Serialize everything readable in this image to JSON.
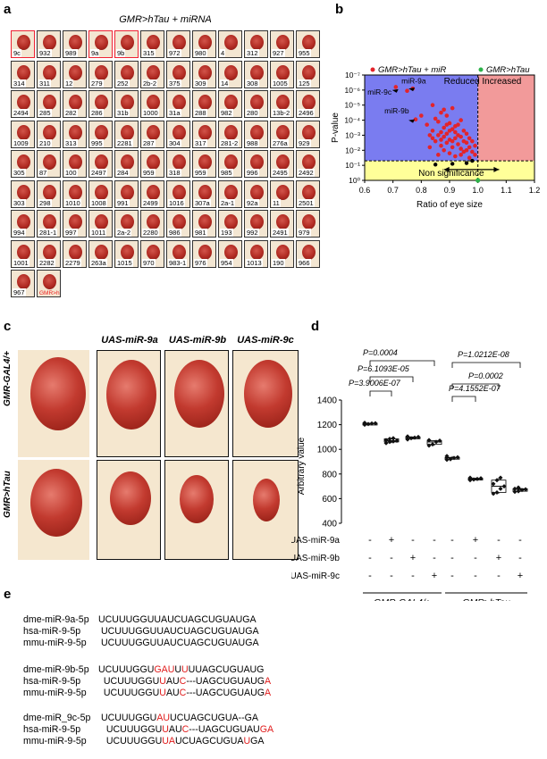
{
  "panel_a": {
    "letter": "a",
    "title": "GMR>hTau + miRNA",
    "tiles": [
      {
        "label": "9c",
        "hl": true
      },
      {
        "label": "932"
      },
      {
        "label": "989"
      },
      {
        "label": "9a",
        "hl": true
      },
      {
        "label": "9b",
        "hl": true
      },
      {
        "label": "315"
      },
      {
        "label": "972"
      },
      {
        "label": "980"
      },
      {
        "label": "4"
      },
      {
        "label": "312"
      },
      {
        "label": "927"
      },
      {
        "label": "955"
      },
      {
        "label": "314"
      },
      {
        "label": "311"
      },
      {
        "label": "12"
      },
      {
        "label": "279"
      },
      {
        "label": "252"
      },
      {
        "label": "2b-2"
      },
      {
        "label": "375"
      },
      {
        "label": "309"
      },
      {
        "label": "14"
      },
      {
        "label": "308"
      },
      {
        "label": "1005"
      },
      {
        "label": "125"
      },
      {
        "label": "2494"
      },
      {
        "label": "285"
      },
      {
        "label": "282"
      },
      {
        "label": "286"
      },
      {
        "label": "31b"
      },
      {
        "label": "1000"
      },
      {
        "label": "31a"
      },
      {
        "label": "288"
      },
      {
        "label": "982"
      },
      {
        "label": "280"
      },
      {
        "label": "13b-2"
      },
      {
        "label": "2496"
      },
      {
        "label": "1009"
      },
      {
        "label": "210"
      },
      {
        "label": "313"
      },
      {
        "label": "995"
      },
      {
        "label": "2281"
      },
      {
        "label": "287"
      },
      {
        "label": "304"
      },
      {
        "label": "317"
      },
      {
        "label": "281-2"
      },
      {
        "label": "988"
      },
      {
        "label": "276a"
      },
      {
        "label": "929"
      },
      {
        "label": "305"
      },
      {
        "label": "87"
      },
      {
        "label": "100"
      },
      {
        "label": "2497"
      },
      {
        "label": "284"
      },
      {
        "label": "959"
      },
      {
        "label": "318"
      },
      {
        "label": "959"
      },
      {
        "label": "985"
      },
      {
        "label": "996"
      },
      {
        "label": "2495"
      },
      {
        "label": "2492"
      },
      {
        "label": "303"
      },
      {
        "label": "298"
      },
      {
        "label": "1010"
      },
      {
        "label": "1008"
      },
      {
        "label": "991"
      },
      {
        "label": "2499"
      },
      {
        "label": "1016"
      },
      {
        "label": "307a"
      },
      {
        "label": "2a-1"
      },
      {
        "label": "92a"
      },
      {
        "label": "11"
      },
      {
        "label": "2501"
      },
      {
        "label": "994"
      },
      {
        "label": "281-1"
      },
      {
        "label": "997"
      },
      {
        "label": "1011"
      },
      {
        "label": "2a-2"
      },
      {
        "label": "2280"
      },
      {
        "label": "986"
      },
      {
        "label": "981"
      },
      {
        "label": "193"
      },
      {
        "label": "992"
      },
      {
        "label": "2491"
      },
      {
        "label": "979"
      },
      {
        "label": "1001"
      },
      {
        "label": "2282"
      },
      {
        "label": "2279"
      },
      {
        "label": "263a"
      },
      {
        "label": "1015"
      },
      {
        "label": "970"
      },
      {
        "label": "983-1"
      },
      {
        "label": "976"
      },
      {
        "label": "954"
      },
      {
        "label": "1013"
      },
      {
        "label": "190"
      },
      {
        "label": "966"
      },
      {
        "label": "967"
      },
      {
        "label": "GMR>hTau",
        "ref": true
      }
    ]
  },
  "panel_b": {
    "letter": "b",
    "legend_left": "GMR>hTau + miR",
    "legend_right": "GMR>hTau",
    "region_reduced": "Reduced",
    "region_increased": "Increased",
    "region_ns": "Non significance",
    "ylabel": "P-value",
    "xlabel": "Ratio of eye size",
    "ann_9a": "miR-9a",
    "ann_9c": "miR-9c",
    "ann_9b": "miR-9b",
    "colors": {
      "reduced": "#7a7cf0",
      "increased": "#f29a9a",
      "ns": "#ffff99",
      "dot": "#e3242b",
      "ref": "#2db34a"
    }
  },
  "chart_data": {
    "type": "scatter",
    "xlabel": "Ratio of eye size",
    "ylabel": "P-value",
    "xlim": [
      0.6,
      1.2
    ],
    "ylim_log10": [
      0,
      -7
    ],
    "x_ticks": [
      "0.6",
      "0.7",
      "0.8",
      "0.9",
      "1.0",
      "1.1",
      "1.2"
    ],
    "y_ticks": [
      "10⁰",
      "10⁻¹",
      "10⁻²",
      "10⁻³",
      "10⁻⁴",
      "10⁻⁵",
      "10⁻⁶",
      "10⁻⁷"
    ],
    "significance_line_log10": -1.3,
    "series": [
      {
        "name": "GMR>hTau + miR",
        "points": [
          [
            0.71,
            -6.2
          ],
          [
            0.75,
            -5.95
          ],
          [
            0.77,
            -6.1
          ],
          [
            0.78,
            -4.05
          ],
          [
            0.8,
            -4.3
          ],
          [
            0.82,
            -3.7
          ],
          [
            0.83,
            -3.0
          ],
          [
            0.83,
            -2.2
          ],
          [
            0.84,
            -5.0
          ],
          [
            0.84,
            -3.3
          ],
          [
            0.85,
            -4.1
          ],
          [
            0.85,
            -2.6
          ],
          [
            0.86,
            -3.9
          ],
          [
            0.86,
            -1.7
          ],
          [
            0.87,
            -4.5
          ],
          [
            0.87,
            -3.2
          ],
          [
            0.87,
            -2.3
          ],
          [
            0.88,
            -3.5
          ],
          [
            0.88,
            -2.9
          ],
          [
            0.88,
            -2.0
          ],
          [
            0.89,
            -4.3
          ],
          [
            0.89,
            -3.1
          ],
          [
            0.89,
            -2.5
          ],
          [
            0.9,
            -3.8
          ],
          [
            0.9,
            -2.7
          ],
          [
            0.9,
            -1.8
          ],
          [
            0.91,
            -4.8
          ],
          [
            0.91,
            -3.4
          ],
          [
            0.91,
            -2.2
          ],
          [
            0.92,
            -3.6
          ],
          [
            0.92,
            -2.8
          ],
          [
            0.92,
            -1.6
          ],
          [
            0.93,
            -3.0
          ],
          [
            0.93,
            -2.4
          ],
          [
            0.94,
            -4.0
          ],
          [
            0.94,
            -2.9
          ],
          [
            0.94,
            -2.1
          ],
          [
            0.95,
            -3.3
          ],
          [
            0.95,
            -2.6
          ],
          [
            0.95,
            -1.9
          ],
          [
            0.96,
            -3.1
          ],
          [
            0.96,
            -2.5
          ],
          [
            0.97,
            -2.8
          ],
          [
            0.97,
            -2.2
          ],
          [
            0.98,
            -2.6
          ],
          [
            0.98,
            -1.9
          ],
          [
            0.99,
            -2.3
          ],
          [
            0.99,
            -1.7
          ],
          [
            0.86,
            -3.0
          ],
          [
            0.9,
            -3.3
          ],
          [
            0.88,
            -4.7
          ],
          [
            0.93,
            -3.7
          ],
          [
            0.96,
            -2.0
          ],
          [
            0.91,
            -2.6
          ],
          [
            0.84,
            -2.8
          ],
          [
            0.87,
            -2.7
          ],
          [
            0.92,
            -3.2
          ],
          [
            0.94,
            -1.7
          ],
          [
            0.97,
            -1.5
          ],
          [
            0.89,
            -3.7
          ]
        ]
      },
      {
        "name": "GMR>hTau",
        "points": [
          [
            1.0,
            0
          ]
        ]
      }
    ],
    "black_points": [
      [
        0.85,
        -1.05
      ],
      [
        0.91,
        -1.1
      ],
      [
        0.96,
        -1.15
      ],
      [
        0.98,
        -1.3
      ]
    ]
  },
  "panel_c": {
    "letter": "c",
    "col_headers": [
      "UAS-miR-9a",
      "UAS-miR-9b",
      "UAS-miR-9c"
    ],
    "row_headers": [
      "GMR-GAL4/+",
      "GMR>hTau"
    ]
  },
  "panel_d": {
    "letter": "d",
    "ylabel": "Arbitrary value",
    "y_ticks": [
      "1400",
      "1200",
      "1000",
      "800",
      "600",
      "400"
    ],
    "pvals": [
      "P=0.0004",
      "P=6.1093E-05",
      "P=3.9006E-07",
      "P=1.0212E-08",
      "P=4.1552E-07",
      "P=0.0002"
    ],
    "rows": [
      {
        "label": "UAS-miR-9a",
        "signs": [
          "-",
          "+",
          "-",
          "-",
          "-",
          "+",
          "-",
          "-"
        ]
      },
      {
        "label": "UAS-miR-9b",
        "signs": [
          "-",
          "-",
          "+",
          "-",
          "-",
          "-",
          "+",
          "-"
        ]
      },
      {
        "label": "UAS-miR-9c",
        "signs": [
          "-",
          "-",
          "-",
          "+",
          "-",
          "-",
          "-",
          "+"
        ]
      }
    ],
    "group_labels": [
      "GMR-GAL4/+",
      "GMR>hTau"
    ]
  },
  "chart_data_d": {
    "type": "box",
    "ylim": [
      400,
      1400
    ],
    "groups": [
      {
        "values": [
          1210,
          1205,
          1215,
          1200,
          1212
        ]
      },
      {
        "values": [
          1060,
          1075,
          1085,
          1050,
          1070,
          1065,
          1090
        ]
      },
      {
        "values": [
          1090,
          1100,
          1080,
          1095,
          1105
        ]
      },
      {
        "values": [
          1040,
          1060,
          1075,
          1030,
          1070
        ]
      },
      {
        "values": [
          930,
          920,
          945,
          915,
          935
        ]
      },
      {
        "values": [
          760,
          750,
          770,
          755,
          765
        ]
      },
      {
        "values": [
          720,
          680,
          750,
          650,
          700,
          770,
          640
        ]
      },
      {
        "values": [
          670,
          660,
          690,
          655,
          675,
          680
        ]
      }
    ]
  },
  "panel_e": {
    "letter": "e",
    "blocks": [
      [
        {
          "name": "dme-miR-9a-5p",
          "seq": [
            [
              "UCUUUGGUUAUCUAGCUGUAUGA",
              0
            ]
          ]
        },
        {
          "name": "hsa-miR-9-5p",
          "seq": [
            [
              " UCUUUGGUUAUCUAGCUGUAUGA",
              0
            ]
          ]
        },
        {
          "name": "mmu-miR-9-5p",
          "seq": [
            [
              " UCUUUGGUUAUCUAGCUGUAUGA",
              0
            ]
          ]
        }
      ],
      [
        {
          "name": "dme-miR-9b-5p",
          "seq": [
            [
              "UCUUUGGU",
              0
            ],
            [
              "GAU",
              1
            ],
            [
              "U",
              0
            ],
            [
              "U",
              1
            ],
            [
              "UUAGCUGUAUG",
              0
            ]
          ]
        },
        {
          "name": "hsa-miR-9-5p",
          "seq": [
            [
              "  UCUUUGGU",
              0
            ],
            [
              "U",
              1
            ],
            [
              "AU",
              0
            ],
            [
              "C",
              1
            ],
            [
              "---UAGCUGUAUG",
              0
            ],
            [
              "A",
              1
            ]
          ]
        },
        {
          "name": "mmu-miR-9-5p",
          "seq": [
            [
              "  UCUUUGGU",
              0
            ],
            [
              "U",
              1
            ],
            [
              "AU",
              0
            ],
            [
              "C",
              1
            ],
            [
              "---UAGCUGUAUG",
              0
            ],
            [
              "A",
              1
            ]
          ]
        }
      ],
      [
        {
          "name": "dme-miR_9c-5p",
          "seq": [
            [
              " UCUUUGGU",
              0
            ],
            [
              "AU",
              1
            ],
            [
              "UCUAGCUGUA--GA",
              0
            ]
          ]
        },
        {
          "name": "hsa-miR-9-5p",
          "seq": [
            [
              "   UCUUUGGU",
              0
            ],
            [
              "U",
              1
            ],
            [
              "AU",
              0
            ],
            [
              "C",
              1
            ],
            [
              "---UAGCUGUAU",
              0
            ],
            [
              "GA",
              1
            ]
          ]
        },
        {
          "name": "mmu-miR-9-5p",
          "seq": [
            [
              "   UCUUUGGU",
              0
            ],
            [
              "UA",
              1
            ],
            [
              "UCUAGCUGUA",
              0
            ],
            [
              "U",
              1
            ],
            [
              "GA",
              0
            ]
          ]
        }
      ]
    ]
  }
}
